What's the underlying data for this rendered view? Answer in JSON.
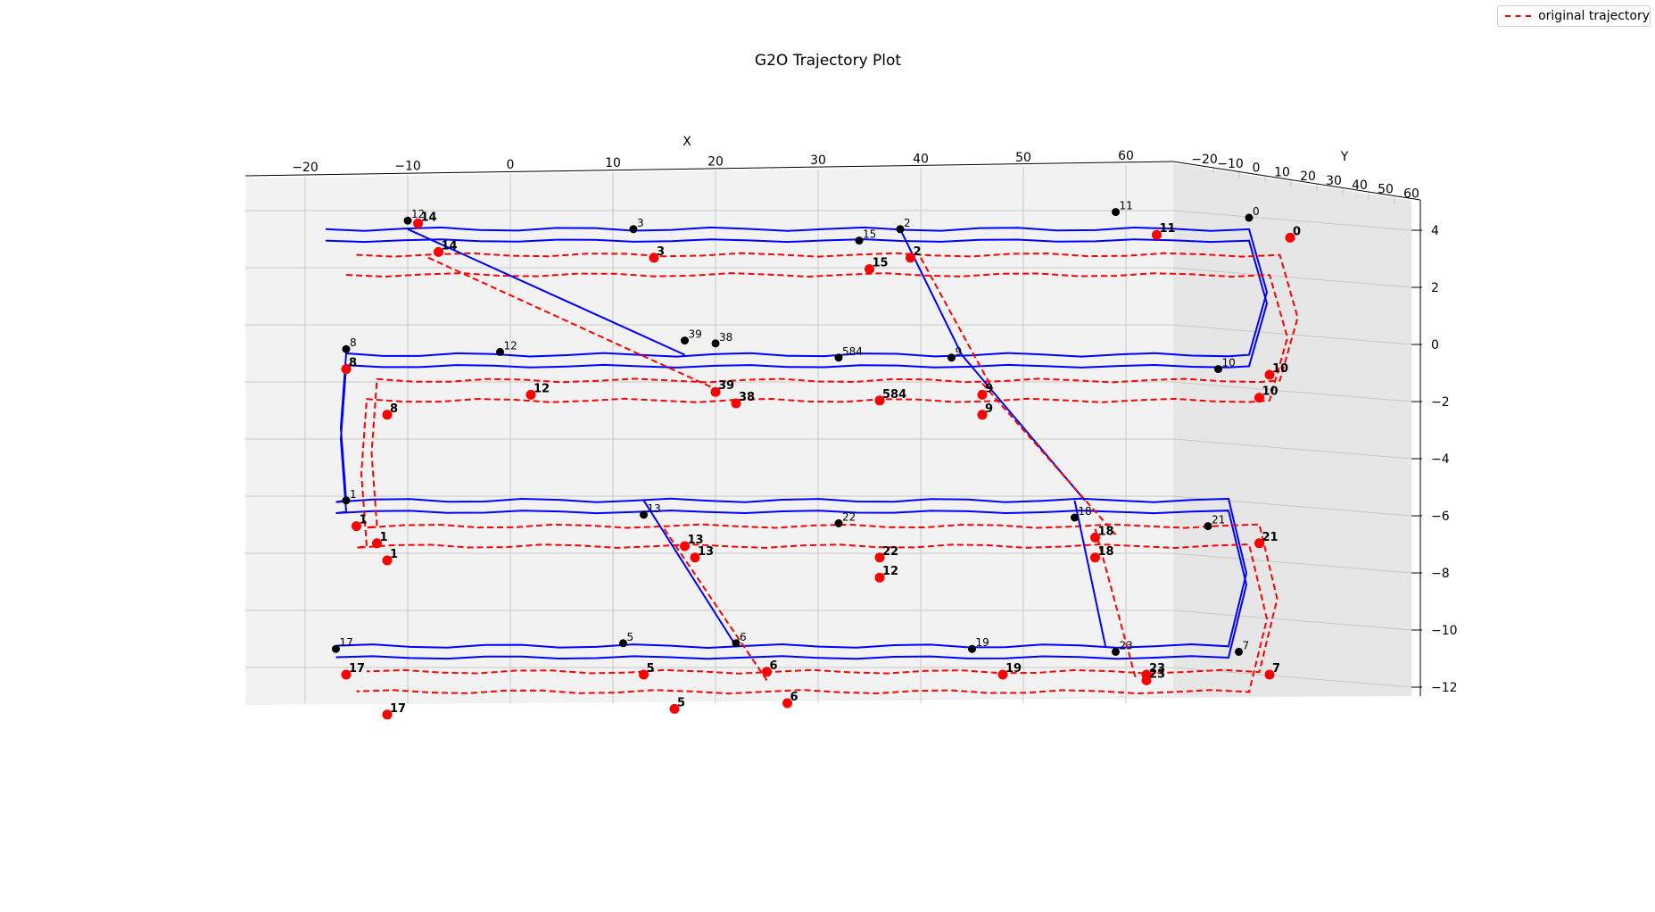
{
  "chart_data": {
    "type": "line",
    "title": "G2O Trajectory Plot",
    "xlabel": "X",
    "ylabel": "Y",
    "zlabel": "",
    "x_ticks": [
      "−20",
      "−10",
      "0",
      "10",
      "20",
      "30",
      "40",
      "50",
      "60"
    ],
    "y_ticks": [
      "−20",
      "−10",
      "0",
      "10",
      "20",
      "30",
      "40",
      "50",
      "60"
    ],
    "z_ticks": [
      "4",
      "2",
      "0",
      "−2",
      "−4",
      "−6",
      "−8",
      "−10",
      "−12"
    ],
    "grid": true,
    "legend_position": "top-right",
    "legend": [
      "original trajectory"
    ],
    "series": [
      {
        "name": "",
        "color": "#0000ff",
        "style": "solid"
      },
      {
        "name": "original trajectory",
        "color": "#ff0000",
        "style": "dashed"
      }
    ],
    "optimized_nodes": [
      {
        "id": "12",
        "x": -10,
        "z": 3.9
      },
      {
        "id": "3",
        "x": 12,
        "z": 3.6
      },
      {
        "id": "15",
        "x": 34,
        "z": 3.2
      },
      {
        "id": "2",
        "x": 38,
        "z": 3.6
      },
      {
        "id": "11",
        "x": 59,
        "z": 4.2
      },
      {
        "id": "0",
        "x": 72,
        "z": 4.0
      },
      {
        "id": "8",
        "x": -16,
        "z": -0.6
      },
      {
        "id": "12",
        "x": -1,
        "z": -0.7
      },
      {
        "id": "39",
        "x": 17,
        "z": -0.3
      },
      {
        "id": "38",
        "x": 20,
        "z": -0.4
      },
      {
        "id": "584",
        "x": 32,
        "z": -0.9
      },
      {
        "id": "9",
        "x": 43,
        "z": -0.9
      },
      {
        "id": "10",
        "x": 69,
        "z": -1.3
      },
      {
        "id": "1",
        "x": -16,
        "z": -5.9
      },
      {
        "id": "13",
        "x": 13,
        "z": -6.4
      },
      {
        "id": "22",
        "x": 32,
        "z": -6.7
      },
      {
        "id": "18",
        "x": 55,
        "z": -6.5
      },
      {
        "id": "21",
        "x": 68,
        "z": -6.8
      },
      {
        "id": "17",
        "x": -17,
        "z": -11.1
      },
      {
        "id": "5",
        "x": 11,
        "z": -10.9
      },
      {
        "id": "6",
        "x": 22,
        "z": -10.9
      },
      {
        "id": "19",
        "x": 45,
        "z": -11.1
      },
      {
        "id": "23",
        "x": 59,
        "z": -11.2
      },
      {
        "id": "7",
        "x": 71,
        "z": -11.2
      }
    ],
    "original_nodes": [
      {
        "id": "14",
        "x": -9,
        "z": 3.8
      },
      {
        "id": "14",
        "x": -7,
        "z": 2.8
      },
      {
        "id": "3",
        "x": 14,
        "z": 2.6
      },
      {
        "id": "15",
        "x": 35,
        "z": 2.2
      },
      {
        "id": "2",
        "x": 39,
        "z": 2.6
      },
      {
        "id": "11",
        "x": 63,
        "z": 3.4
      },
      {
        "id": "0",
        "x": 76,
        "z": 3.3
      },
      {
        "id": "8",
        "x": -16,
        "z": -1.3
      },
      {
        "id": "8",
        "x": -12,
        "z": -2.9
      },
      {
        "id": "12",
        "x": 2,
        "z": -2.2
      },
      {
        "id": "39",
        "x": 20,
        "z": -2.1
      },
      {
        "id": "38",
        "x": 22,
        "z": -2.5
      },
      {
        "id": "584",
        "x": 36,
        "z": -2.4
      },
      {
        "id": "9",
        "x": 46,
        "z": -2.2
      },
      {
        "id": "9",
        "x": 46,
        "z": -2.9
      },
      {
        "id": "10",
        "x": 74,
        "z": -1.5
      },
      {
        "id": "10",
        "x": 73,
        "z": -2.3
      },
      {
        "id": "1",
        "x": -15,
        "z": -6.8
      },
      {
        "id": "1",
        "x": -13,
        "z": -7.4
      },
      {
        "id": "1",
        "x": -12,
        "z": -8.0
      },
      {
        "id": "13",
        "x": 17,
        "z": -7.5
      },
      {
        "id": "13",
        "x": 18,
        "z": -7.9
      },
      {
        "id": "22",
        "x": 36,
        "z": -7.9
      },
      {
        "id": "12",
        "x": 36,
        "z": -8.6
      },
      {
        "id": "18",
        "x": 57,
        "z": -7.2
      },
      {
        "id": "18",
        "x": 57,
        "z": -7.9
      },
      {
        "id": "21",
        "x": 73,
        "z": -7.4
      },
      {
        "id": "17",
        "x": -16,
        "z": -12.0
      },
      {
        "id": "17",
        "x": -12,
        "z": -13.4
      },
      {
        "id": "5",
        "x": 13,
        "z": -12.0
      },
      {
        "id": "5",
        "x": 16,
        "z": -13.2
      },
      {
        "id": "6",
        "x": 25,
        "z": -11.9
      },
      {
        "id": "6",
        "x": 27,
        "z": -13.0
      },
      {
        "id": "19",
        "x": 48,
        "z": -12.0
      },
      {
        "id": "23",
        "x": 62,
        "z": -12.0
      },
      {
        "id": "23",
        "x": 62,
        "z": -12.2
      },
      {
        "id": "7",
        "x": 74,
        "z": -12.0
      }
    ]
  }
}
